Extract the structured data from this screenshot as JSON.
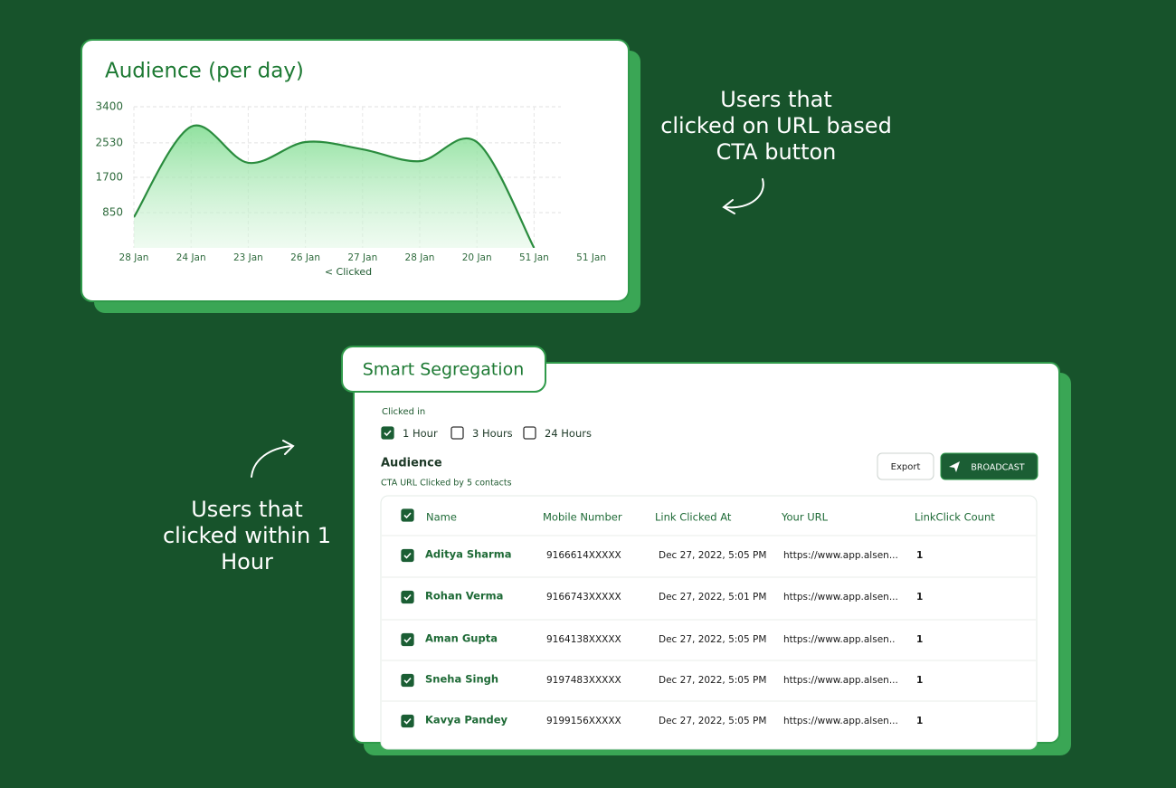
{
  "chart_data": {
    "type": "area",
    "title": "Audience (per day)",
    "x_label": "< Clicked",
    "categories": [
      "28 Jan",
      "24 Jan",
      "23 Jan",
      "26 Jan",
      "27 Jan",
      "28 Jan",
      "20 Jan",
      "51 Jan",
      "51 Jan"
    ],
    "values": [
      740,
      2920,
      2050,
      2550,
      2375,
      2090,
      2550,
      0,
      null
    ],
    "color": "#2a8c3e",
    "ylim": [
      0,
      3400
    ],
    "yticks": [
      850,
      1700,
      2530,
      3400
    ],
    "grid": true
  },
  "annotations": {
    "cta": [
      "Users that",
      "clicked on URL based",
      "CTA button"
    ],
    "hour": [
      "Users that",
      "clicked within 1",
      "Hour"
    ]
  },
  "segregation": {
    "title": "Smart Segregation",
    "filter_label": "Clicked in",
    "options": [
      {
        "label": "1 Hour",
        "checked": true
      },
      {
        "label": "3 Hours",
        "checked": false
      },
      {
        "label": "24 Hours",
        "checked": false
      }
    ],
    "section_title": "Audience",
    "section_subtitle": "CTA URL Clicked by 5 contacts",
    "buttons": {
      "export": "Export",
      "broadcast": "BROADCAST"
    },
    "table": {
      "header_checked": true,
      "columns": [
        "Name",
        "Mobile Number",
        "Link Clicked At",
        "Your URL",
        "LinkClick Count"
      ],
      "rows": [
        [
          "Aditya Sharma",
          "9166614XXXXX",
          "Dec 27, 2022, 5:05 PM",
          "https://www.app.alsen...",
          "1"
        ],
        [
          "Rohan Verma",
          "9166743XXXXX",
          "Dec 27, 2022, 5:01 PM",
          "https://www.app.alsen...",
          "1"
        ],
        [
          "Aman Gupta",
          "9164138XXXXX",
          "Dec 27, 2022, 5:05 PM",
          "https://www.app.alsen..",
          "1"
        ],
        [
          "Sneha Singh",
          "9197483XXXXX",
          "Dec 27, 2022, 5:05 PM",
          "https://www.app.alsen...",
          "1"
        ],
        [
          "Kavya Pandey",
          "9199156XXXXX",
          "Dec 27, 2022, 5:05 PM",
          "https://www.app.alsen...",
          "1"
        ]
      ],
      "row_checked": [
        true,
        true,
        true,
        true,
        true
      ]
    }
  }
}
